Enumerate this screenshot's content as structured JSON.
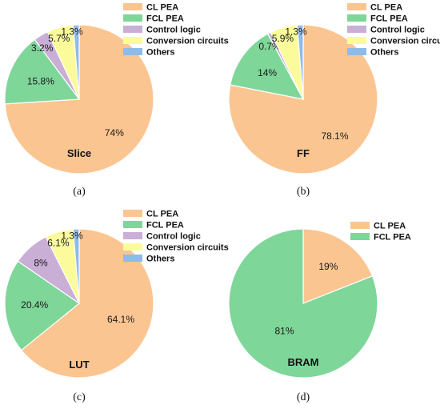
{
  "colors": {
    "CL PEA": "#fbc591",
    "FCL PEA": "#7ed699",
    "Control logic": "#c9aed6",
    "Conversion circuits": "#fbfb9b",
    "Others": "#8dbbea"
  },
  "chart_data": [
    {
      "type": "pie",
      "caption": "(a)",
      "center_label": "Slice",
      "legend": [
        "CL PEA",
        "FCL PEA",
        "Control logic",
        "Conversion circuits",
        "Others"
      ],
      "slices": [
        {
          "name": "CL PEA",
          "value": 74,
          "label": "74%"
        },
        {
          "name": "FCL PEA",
          "value": 15.8,
          "label": "15.8%"
        },
        {
          "name": "Control logic",
          "value": 3.2,
          "label": "3.2%"
        },
        {
          "name": "Conversion circuits",
          "value": 5.7,
          "label": "5.7%"
        },
        {
          "name": "Others",
          "value": 1.3,
          "label": "1.3%"
        }
      ]
    },
    {
      "type": "pie",
      "caption": "(b)",
      "center_label": "FF",
      "legend": [
        "CL PEA",
        "FCL PEA",
        "Control logic",
        "Conversion circuits",
        "Others"
      ],
      "slices": [
        {
          "name": "CL PEA",
          "value": 78.1,
          "label": "78.1%"
        },
        {
          "name": "FCL PEA",
          "value": 14,
          "label": "14%"
        },
        {
          "name": "Control logic",
          "value": 0.7,
          "label": "0.7%"
        },
        {
          "name": "Conversion circuits",
          "value": 5.9,
          "label": "5.9%"
        },
        {
          "name": "Others",
          "value": 1.3,
          "label": "1.3%"
        }
      ]
    },
    {
      "type": "pie",
      "caption": "(c)",
      "center_label": "LUT",
      "legend": [
        "CL PEA",
        "FCL PEA",
        "Control logic",
        "Conversion circuits",
        "Others"
      ],
      "slices": [
        {
          "name": "CL PEA",
          "value": 64.1,
          "label": "64.1%"
        },
        {
          "name": "FCL PEA",
          "value": 20.4,
          "label": "20.4%"
        },
        {
          "name": "Control logic",
          "value": 8,
          "label": "8%"
        },
        {
          "name": "Conversion circuits",
          "value": 6.1,
          "label": "6.1%"
        },
        {
          "name": "Others",
          "value": 1.3,
          "label": "1.3%"
        }
      ]
    },
    {
      "type": "pie",
      "caption": "(d)",
      "center_label": "BRAM",
      "legend": [
        "CL PEA",
        "FCL PEA"
      ],
      "slices": [
        {
          "name": "CL PEA",
          "value": 19,
          "label": "19%"
        },
        {
          "name": "FCL PEA",
          "value": 81,
          "label": "81%"
        }
      ]
    }
  ]
}
